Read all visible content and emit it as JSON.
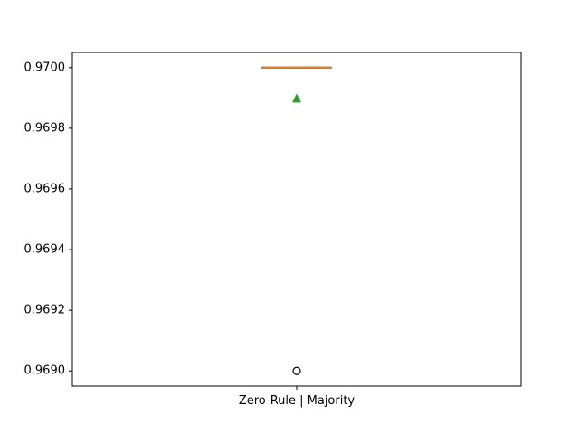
{
  "chart_data": {
    "type": "box",
    "title": "",
    "xlabel": "",
    "ylabel": "",
    "categories": [
      "Zero-Rule | Majority"
    ],
    "ylim": [
      0.96895,
      0.97005
    ],
    "yticks": [
      "0.9690",
      "0.9692",
      "0.9694",
      "0.9696",
      "0.9698",
      "0.9700"
    ],
    "grid": false,
    "boxes": [
      {
        "category": "Zero-Rule | Majority",
        "q1": 0.97,
        "median": 0.97,
        "q3": 0.97,
        "whisker_low": 0.97,
        "whisker_high": 0.97,
        "mean": 0.9699,
        "outliers": [
          0.969
        ]
      }
    ],
    "colors": {
      "box": "#000000",
      "median": "#ff7f0e",
      "mean": "#2ca02c",
      "outlier": "#000000"
    }
  }
}
